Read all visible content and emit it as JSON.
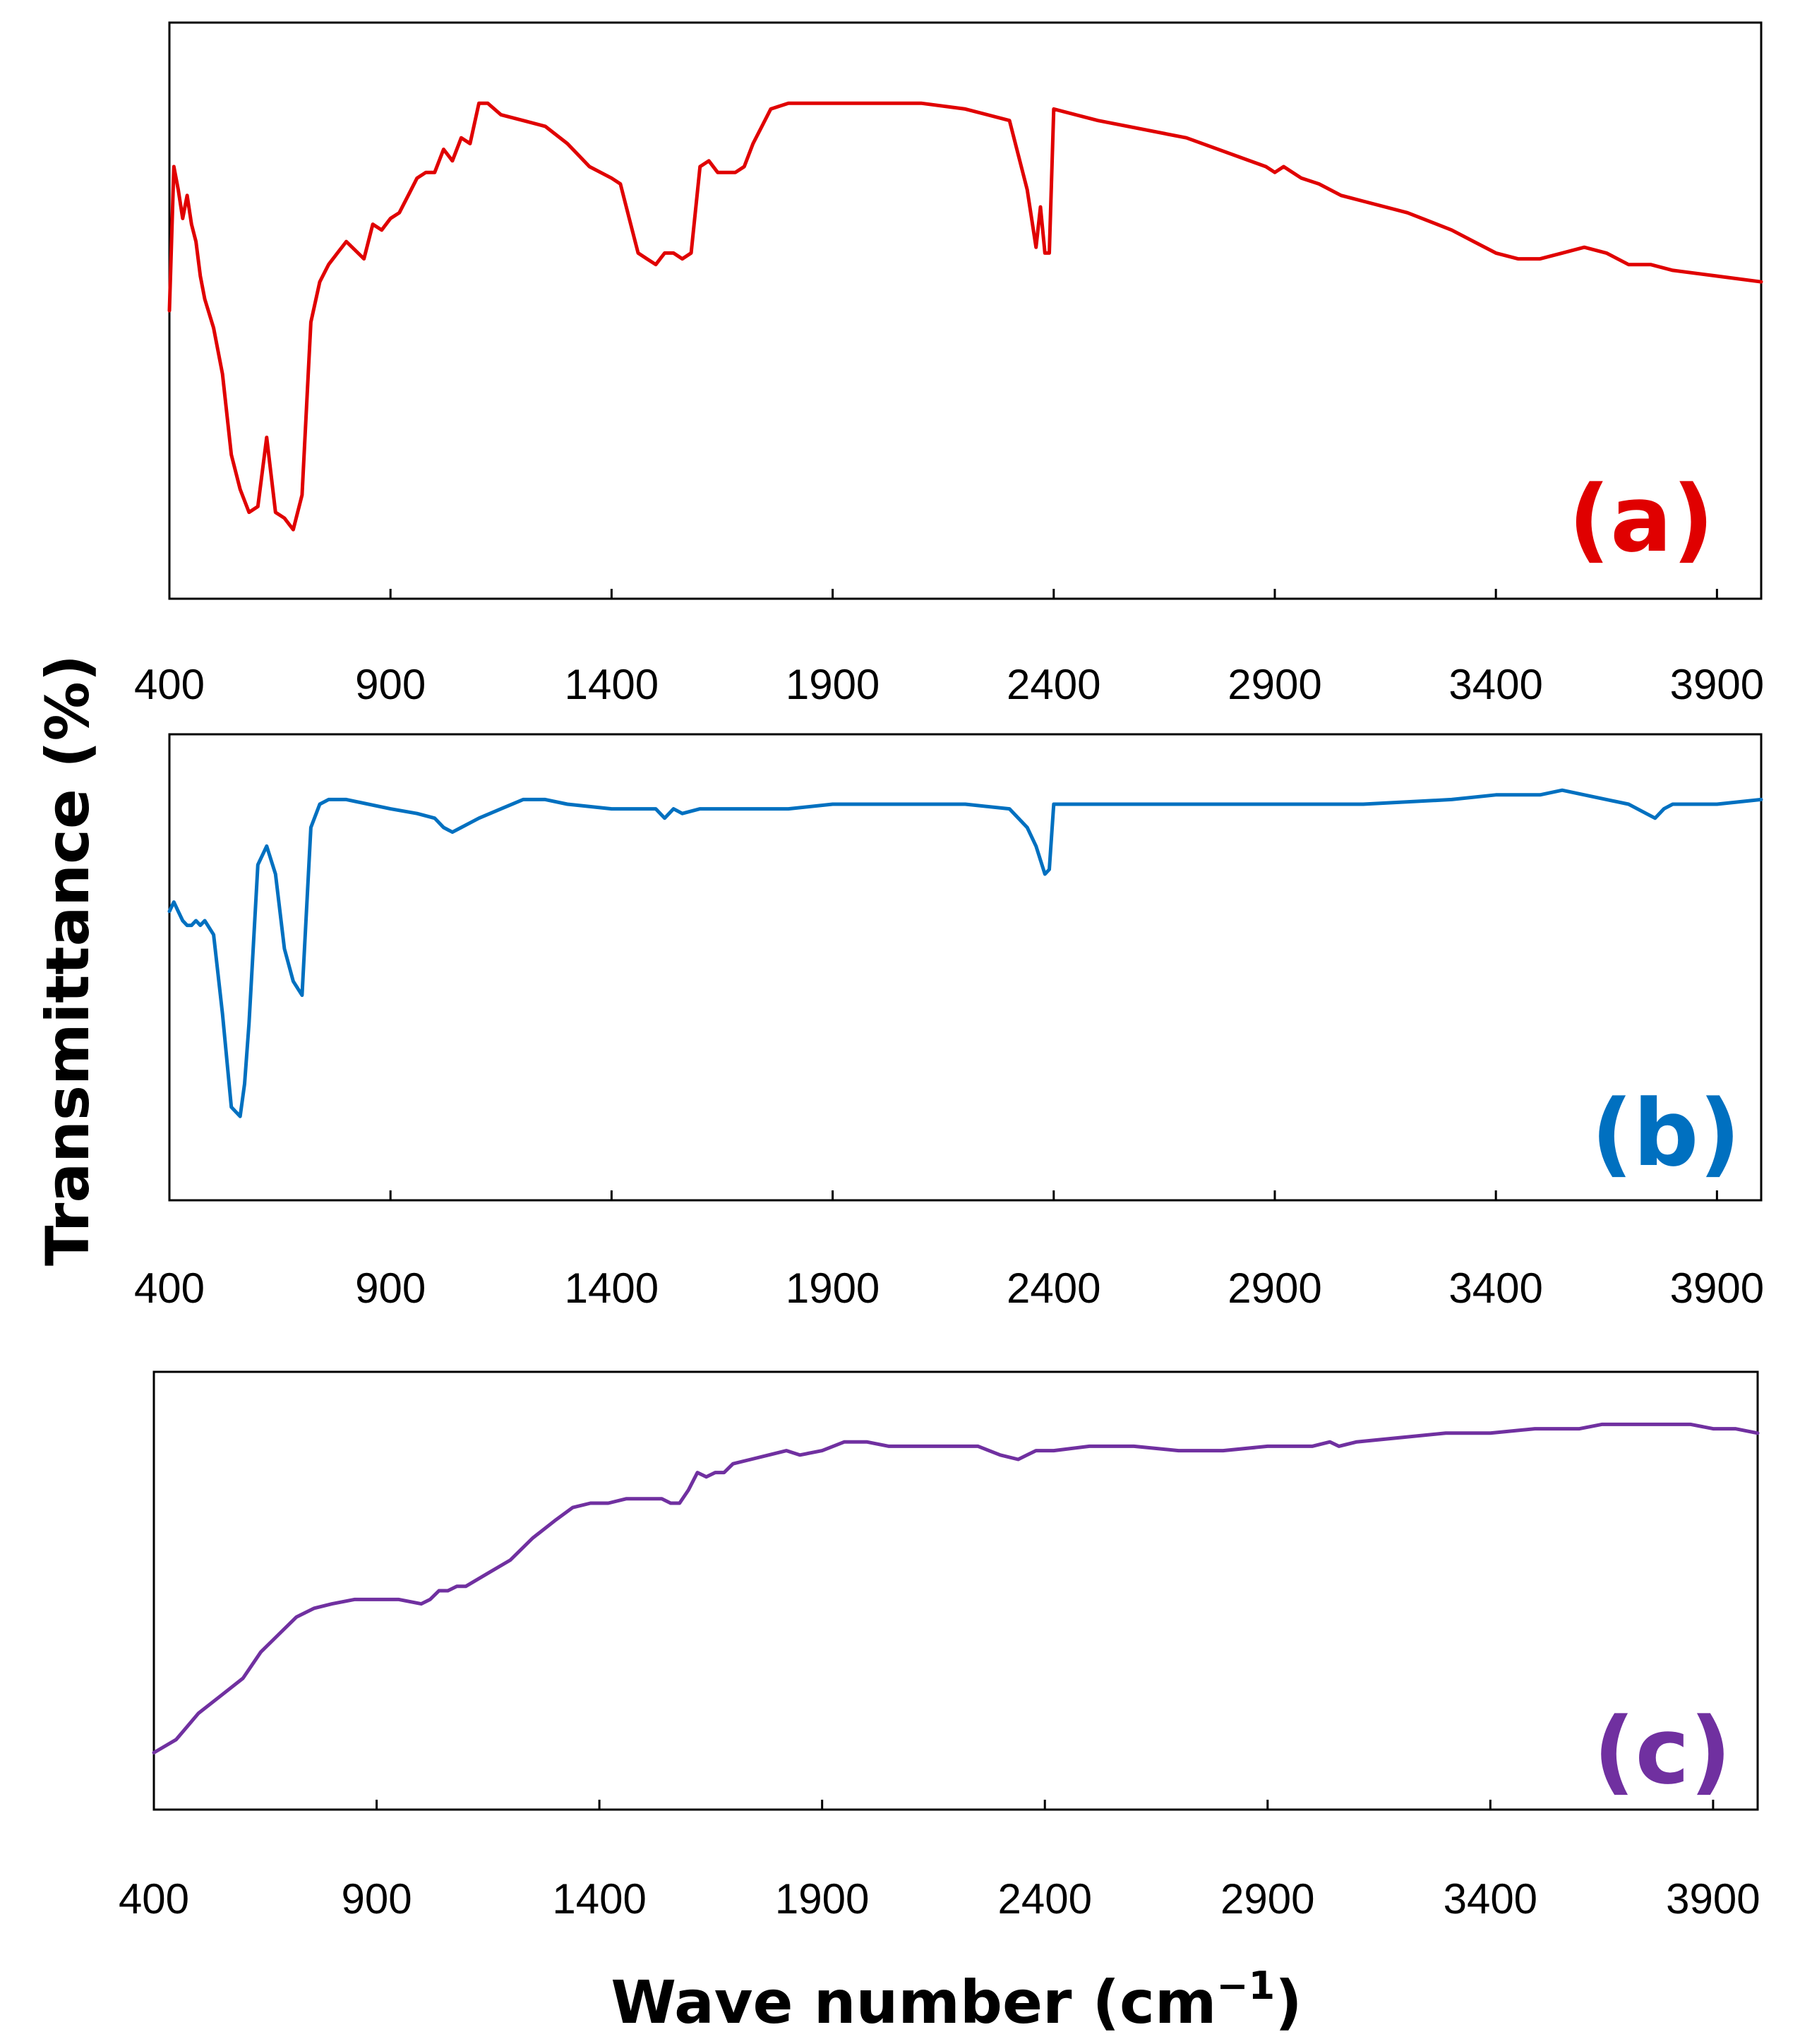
{
  "figure": {
    "ylabel": "Transmittance (%)",
    "xlabel_main": "Wave number (cm",
    "xlabel_sup": "−1",
    "xlabel_close": ")"
  },
  "chart_data": [
    {
      "type": "line",
      "panel": "(a)",
      "color": "#E00000",
      "xlim": [
        400,
        4000
      ],
      "ylim": [
        0,
        100
      ],
      "xticks": [
        "400",
        "900",
        "1400",
        "1900",
        "2400",
        "2900",
        "3400",
        "3900"
      ],
      "series": [
        {
          "name": "(a)",
          "x": [
            400,
            410,
            420,
            430,
            440,
            450,
            460,
            470,
            480,
            500,
            520,
            540,
            560,
            580,
            600,
            620,
            640,
            660,
            680,
            700,
            720,
            740,
            760,
            780,
            800,
            840,
            860,
            880,
            900,
            920,
            940,
            960,
            980,
            1000,
            1020,
            1040,
            1060,
            1080,
            1100,
            1120,
            1150,
            1200,
            1250,
            1300,
            1350,
            1400,
            1420,
            1440,
            1460,
            1480,
            1500,
            1520,
            1540,
            1560,
            1580,
            1600,
            1620,
            1640,
            1660,
            1680,
            1700,
            1720,
            1740,
            1760,
            1800,
            1900,
            2000,
            2100,
            2200,
            2300,
            2340,
            2360,
            2370,
            2380,
            2390,
            2400,
            2500,
            2700,
            2880,
            2900,
            2920,
            2960,
            3000,
            3050,
            3100,
            3200,
            3300,
            3350,
            3400,
            3450,
            3500,
            3550,
            3600,
            3650,
            3700,
            3750,
            3800,
            3900,
            4000
          ],
          "y": [
            50,
            75,
            71,
            66,
            70,
            65,
            62,
            56,
            52,
            47,
            39,
            25,
            19,
            15,
            16,
            28,
            15,
            14,
            12,
            18,
            48,
            55,
            58,
            60,
            62,
            59,
            65,
            64,
            66,
            67,
            70,
            73,
            74,
            74,
            78,
            76,
            80,
            79,
            86,
            86,
            84,
            83,
            82,
            79,
            75,
            73,
            72,
            66,
            60,
            59,
            58,
            60,
            60,
            59,
            60,
            75,
            76,
            74,
            74,
            74,
            75,
            79,
            82,
            85,
            86,
            86,
            86,
            86,
            85,
            83,
            71,
            61,
            68,
            60,
            60,
            85,
            83,
            80,
            75,
            74,
            75,
            73,
            72,
            70,
            69,
            67,
            64,
            62,
            60,
            59,
            59,
            60,
            61,
            60,
            58,
            58,
            57,
            56,
            55
          ]
        }
      ]
    },
    {
      "type": "line",
      "panel": "(b)",
      "color": "#0070C0",
      "xlim": [
        400,
        4000
      ],
      "ylim": [
        0,
        100
      ],
      "xticks": [
        "400",
        "900",
        "1400",
        "1900",
        "2400",
        "2900",
        "3400",
        "3900"
      ],
      "series": [
        {
          "name": "(b)",
          "x": [
            400,
            410,
            420,
            430,
            440,
            450,
            460,
            470,
            480,
            500,
            520,
            540,
            560,
            570,
            580,
            600,
            620,
            640,
            660,
            680,
            700,
            720,
            740,
            760,
            800,
            900,
            960,
            1000,
            1020,
            1040,
            1060,
            1080,
            1100,
            1150,
            1200,
            1250,
            1300,
            1400,
            1500,
            1520,
            1540,
            1560,
            1600,
            1700,
            1800,
            1900,
            2000,
            2100,
            2200,
            2300,
            2340,
            2360,
            2370,
            2380,
            2390,
            2400,
            2500,
            2700,
            2900,
            3100,
            3300,
            3400,
            3500,
            3550,
            3600,
            3650,
            3700,
            3740,
            3760,
            3780,
            3800,
            3900,
            4000
          ],
          "y": [
            62,
            64,
            62,
            60,
            59,
            59,
            60,
            59,
            60,
            57,
            40,
            20,
            18,
            25,
            38,
            72,
            76,
            70,
            54,
            47,
            44,
            80,
            85,
            86,
            86,
            84,
            83,
            82,
            80,
            79,
            80,
            81,
            82,
            84,
            86,
            86,
            85,
            84,
            84,
            82,
            84,
            83,
            84,
            84,
            84,
            85,
            85,
            85,
            85,
            84,
            80,
            76,
            73,
            70,
            71,
            85,
            85,
            85,
            85,
            85,
            86,
            87,
            87,
            88,
            87,
            86,
            85,
            83,
            82,
            84,
            85,
            85,
            86
          ]
        }
      ]
    },
    {
      "type": "line",
      "panel": "(c)",
      "color": "#7030A0",
      "xlim": [
        400,
        4000
      ],
      "ylim": [
        0,
        100
      ],
      "xticks": [
        "400",
        "900",
        "1400",
        "1900",
        "2400",
        "2900",
        "3400",
        "3900"
      ],
      "series": [
        {
          "name": "(c)",
          "x": [
            400,
            450,
            500,
            550,
            600,
            640,
            680,
            720,
            760,
            800,
            850,
            900,
            950,
            1000,
            1020,
            1040,
            1060,
            1080,
            1100,
            1150,
            1200,
            1250,
            1300,
            1340,
            1380,
            1420,
            1460,
            1500,
            1540,
            1560,
            1580,
            1600,
            1620,
            1640,
            1660,
            1680,
            1700,
            1740,
            1780,
            1820,
            1850,
            1900,
            1950,
            2000,
            2050,
            2100,
            2150,
            2200,
            2250,
            2300,
            2340,
            2360,
            2380,
            2420,
            2500,
            2600,
            2700,
            2800,
            2900,
            3000,
            3040,
            3060,
            3100,
            3200,
            3300,
            3400,
            3500,
            3550,
            3600,
            3650,
            3700,
            3750,
            3800,
            3850,
            3900,
            3950,
            4000
          ],
          "y": [
            13,
            16,
            22,
            26,
            30,
            36,
            40,
            44,
            46,
            47,
            48,
            48,
            48,
            47,
            48,
            50,
            50,
            51,
            51,
            54,
            57,
            62,
            66,
            69,
            70,
            70,
            71,
            71,
            71,
            70,
            70,
            73,
            77,
            76,
            77,
            77,
            79,
            80,
            81,
            82,
            81,
            82,
            84,
            84,
            83,
            83,
            83,
            83,
            83,
            81,
            80,
            81,
            82,
            82,
            83,
            83,
            82,
            82,
            83,
            83,
            84,
            83,
            84,
            85,
            86,
            86,
            87,
            87,
            87,
            88,
            88,
            88,
            88,
            88,
            87,
            87,
            86
          ]
        }
      ]
    }
  ]
}
